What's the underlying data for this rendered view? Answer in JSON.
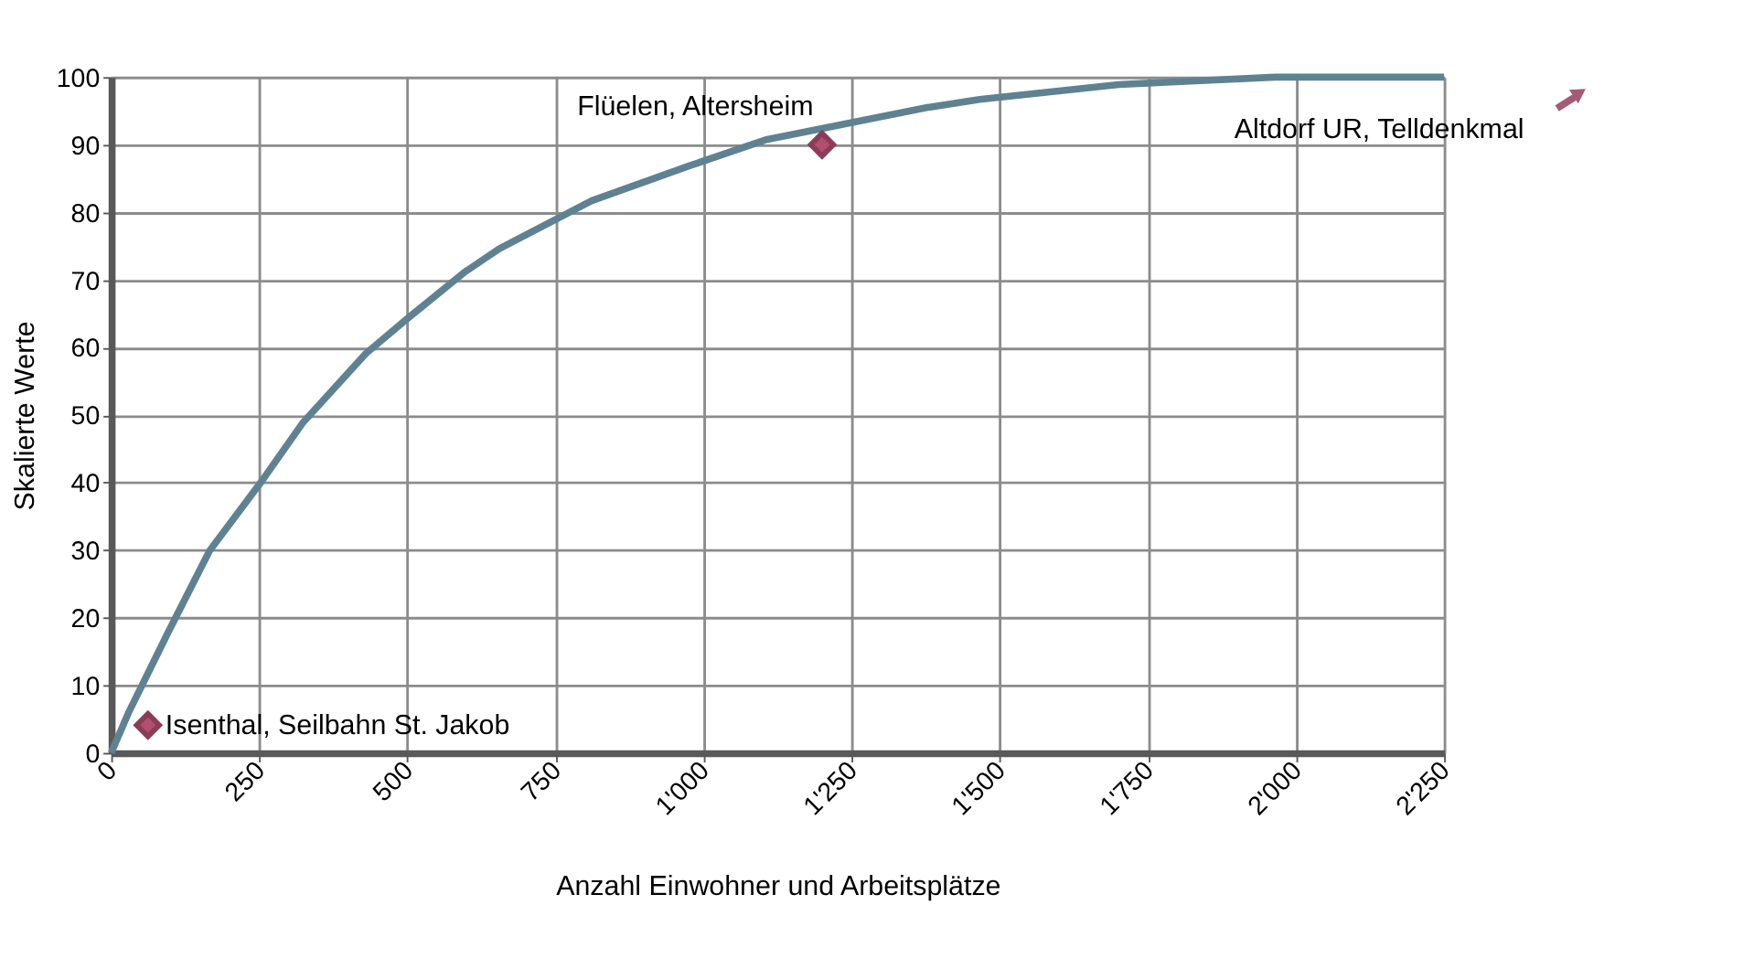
{
  "chart_data": {
    "type": "line",
    "xlabel": "Anzahl Einwohner und Arbeitsplätze",
    "ylabel": "Skalierte Werte",
    "xlim": [
      0,
      2250
    ],
    "ylim": [
      0,
      100
    ],
    "xticks": [
      0,
      250,
      500,
      750,
      {
        "value": 1000,
        "label": "1'000"
      },
      {
        "value": 1250,
        "label": "1'250"
      },
      {
        "value": 1500,
        "label": "1'500"
      },
      {
        "value": 1750,
        "label": "1'750"
      },
      {
        "value": 2000,
        "label": "2'000"
      },
      {
        "value": 2250,
        "label": "2'250"
      }
    ],
    "yticks": [
      0,
      10,
      20,
      30,
      40,
      50,
      60,
      70,
      80,
      90,
      100
    ],
    "grid": true,
    "line_style": "solid",
    "series": [
      {
        "color": "#5f8292",
        "marker": "none",
        "x": [
          0,
          29,
          97,
          166,
          254,
          323,
          430,
          499,
          596,
          655,
          811,
          977,
          1104,
          1378,
          1466,
          1701,
          1965,
          2250
        ],
        "values": [
          0,
          5.9,
          18,
          29.9,
          40.2,
          48.8,
          59.1,
          64.2,
          71.1,
          74.6,
          81.7,
          86.9,
          90.7,
          95.5,
          96.7,
          98.9,
          100,
          100
        ]
      },
      {
        "type": "scatter",
        "color": "#8b3c57",
        "marker": "diamond",
        "x": [
          62,
          1200
        ],
        "values": [
          4.1,
          90
        ]
      }
    ],
    "annotations": [
      {
        "text": "Isenthal, Seilbahn St. Jakob",
        "x": 62,
        "y": 4.1
      },
      {
        "text": "Flüelen, Altersheim",
        "x": 1200,
        "y": 90
      },
      "Altdorf UR, Telldenkmal"
    ]
  }
}
